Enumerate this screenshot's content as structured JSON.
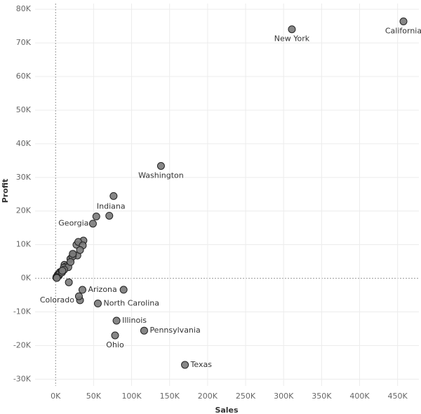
{
  "chart_data": {
    "type": "scatter",
    "x_label": "Sales",
    "y_label": "Profit",
    "x": [
      19511,
      35282,
      11678,
      457688,
      32108,
      13384,
      27451,
      2865,
      89474,
      49096,
      4382,
      80166,
      53555,
      4580,
      2914,
      36592,
      9217,
      1271,
      23706,
      28634,
      76270,
      29863,
      10771,
      22205,
      5589,
      7465,
      16729,
      7293,
      35764,
      4784,
      310876,
      55603,
      920,
      78258,
      19683,
      17431,
      116512,
      22628,
      8482,
      1316,
      30662,
      170188,
      11220,
      8929,
      70637,
      138641,
      1210,
      32115,
      1603
    ],
    "y": [
      5787,
      -3428,
      4009,
      76381,
      -6528,
      3511,
      9977,
      1060,
      -3399,
      16250,
      827,
      -12608,
      18383,
      1184,
      836,
      11200,
      2196,
      454,
      7031,
      6786,
      24463,
      10823,
      3173,
      6436,
      1833,
      2037,
      3317,
      1707,
      9773,
      1157,
      74039,
      -7491,
      230,
      -16971,
      4854,
      -1190,
      -15560,
      7286,
      1769,
      395,
      -5342,
      -25729,
      2547,
      2245,
      18598,
      33403,
      186,
      8402,
      100
    ],
    "point_labels": [
      null,
      "Arizona",
      null,
      "California",
      "Colorado",
      null,
      null,
      null,
      null,
      "Georgia",
      null,
      "Illinois",
      "Indiana",
      null,
      null,
      null,
      null,
      null,
      null,
      null,
      null,
      null,
      null,
      null,
      null,
      null,
      null,
      null,
      null,
      null,
      "New York",
      "North Carolina",
      null,
      "Ohio",
      null,
      null,
      "Pennsylvania",
      null,
      null,
      null,
      null,
      "Texas",
      null,
      null,
      null,
      "Washington",
      null,
      null,
      null
    ],
    "xlim": [
      -27000,
      478000
    ],
    "ylim": [
      -32000,
      81700
    ],
    "xticks": [
      {
        "value": 0,
        "label": "0K"
      },
      {
        "value": 50000,
        "label": "50K"
      },
      {
        "value": 100000,
        "label": "100K"
      },
      {
        "value": 150000,
        "label": "150K"
      },
      {
        "value": 200000,
        "label": "200K"
      },
      {
        "value": 250000,
        "label": "250K"
      },
      {
        "value": 300000,
        "label": "300K"
      },
      {
        "value": 350000,
        "label": "350K"
      },
      {
        "value": 400000,
        "label": "400K"
      },
      {
        "value": 450000,
        "label": "450K"
      }
    ],
    "yticks": [
      {
        "value": -30000,
        "label": "-30K"
      },
      {
        "value": -20000,
        "label": "-20K"
      },
      {
        "value": -10000,
        "label": "-10K"
      },
      {
        "value": 0,
        "label": "0K"
      },
      {
        "value": 10000,
        "label": "10K"
      },
      {
        "value": 20000,
        "label": "20K"
      },
      {
        "value": 30000,
        "label": "30K"
      },
      {
        "value": 40000,
        "label": "40K"
      },
      {
        "value": 50000,
        "label": "50K"
      },
      {
        "value": 60000,
        "label": "60K"
      },
      {
        "value": 70000,
        "label": "70K"
      },
      {
        "value": 80000,
        "label": "80K"
      }
    ],
    "grid": true,
    "color": "#7a7a7a"
  }
}
